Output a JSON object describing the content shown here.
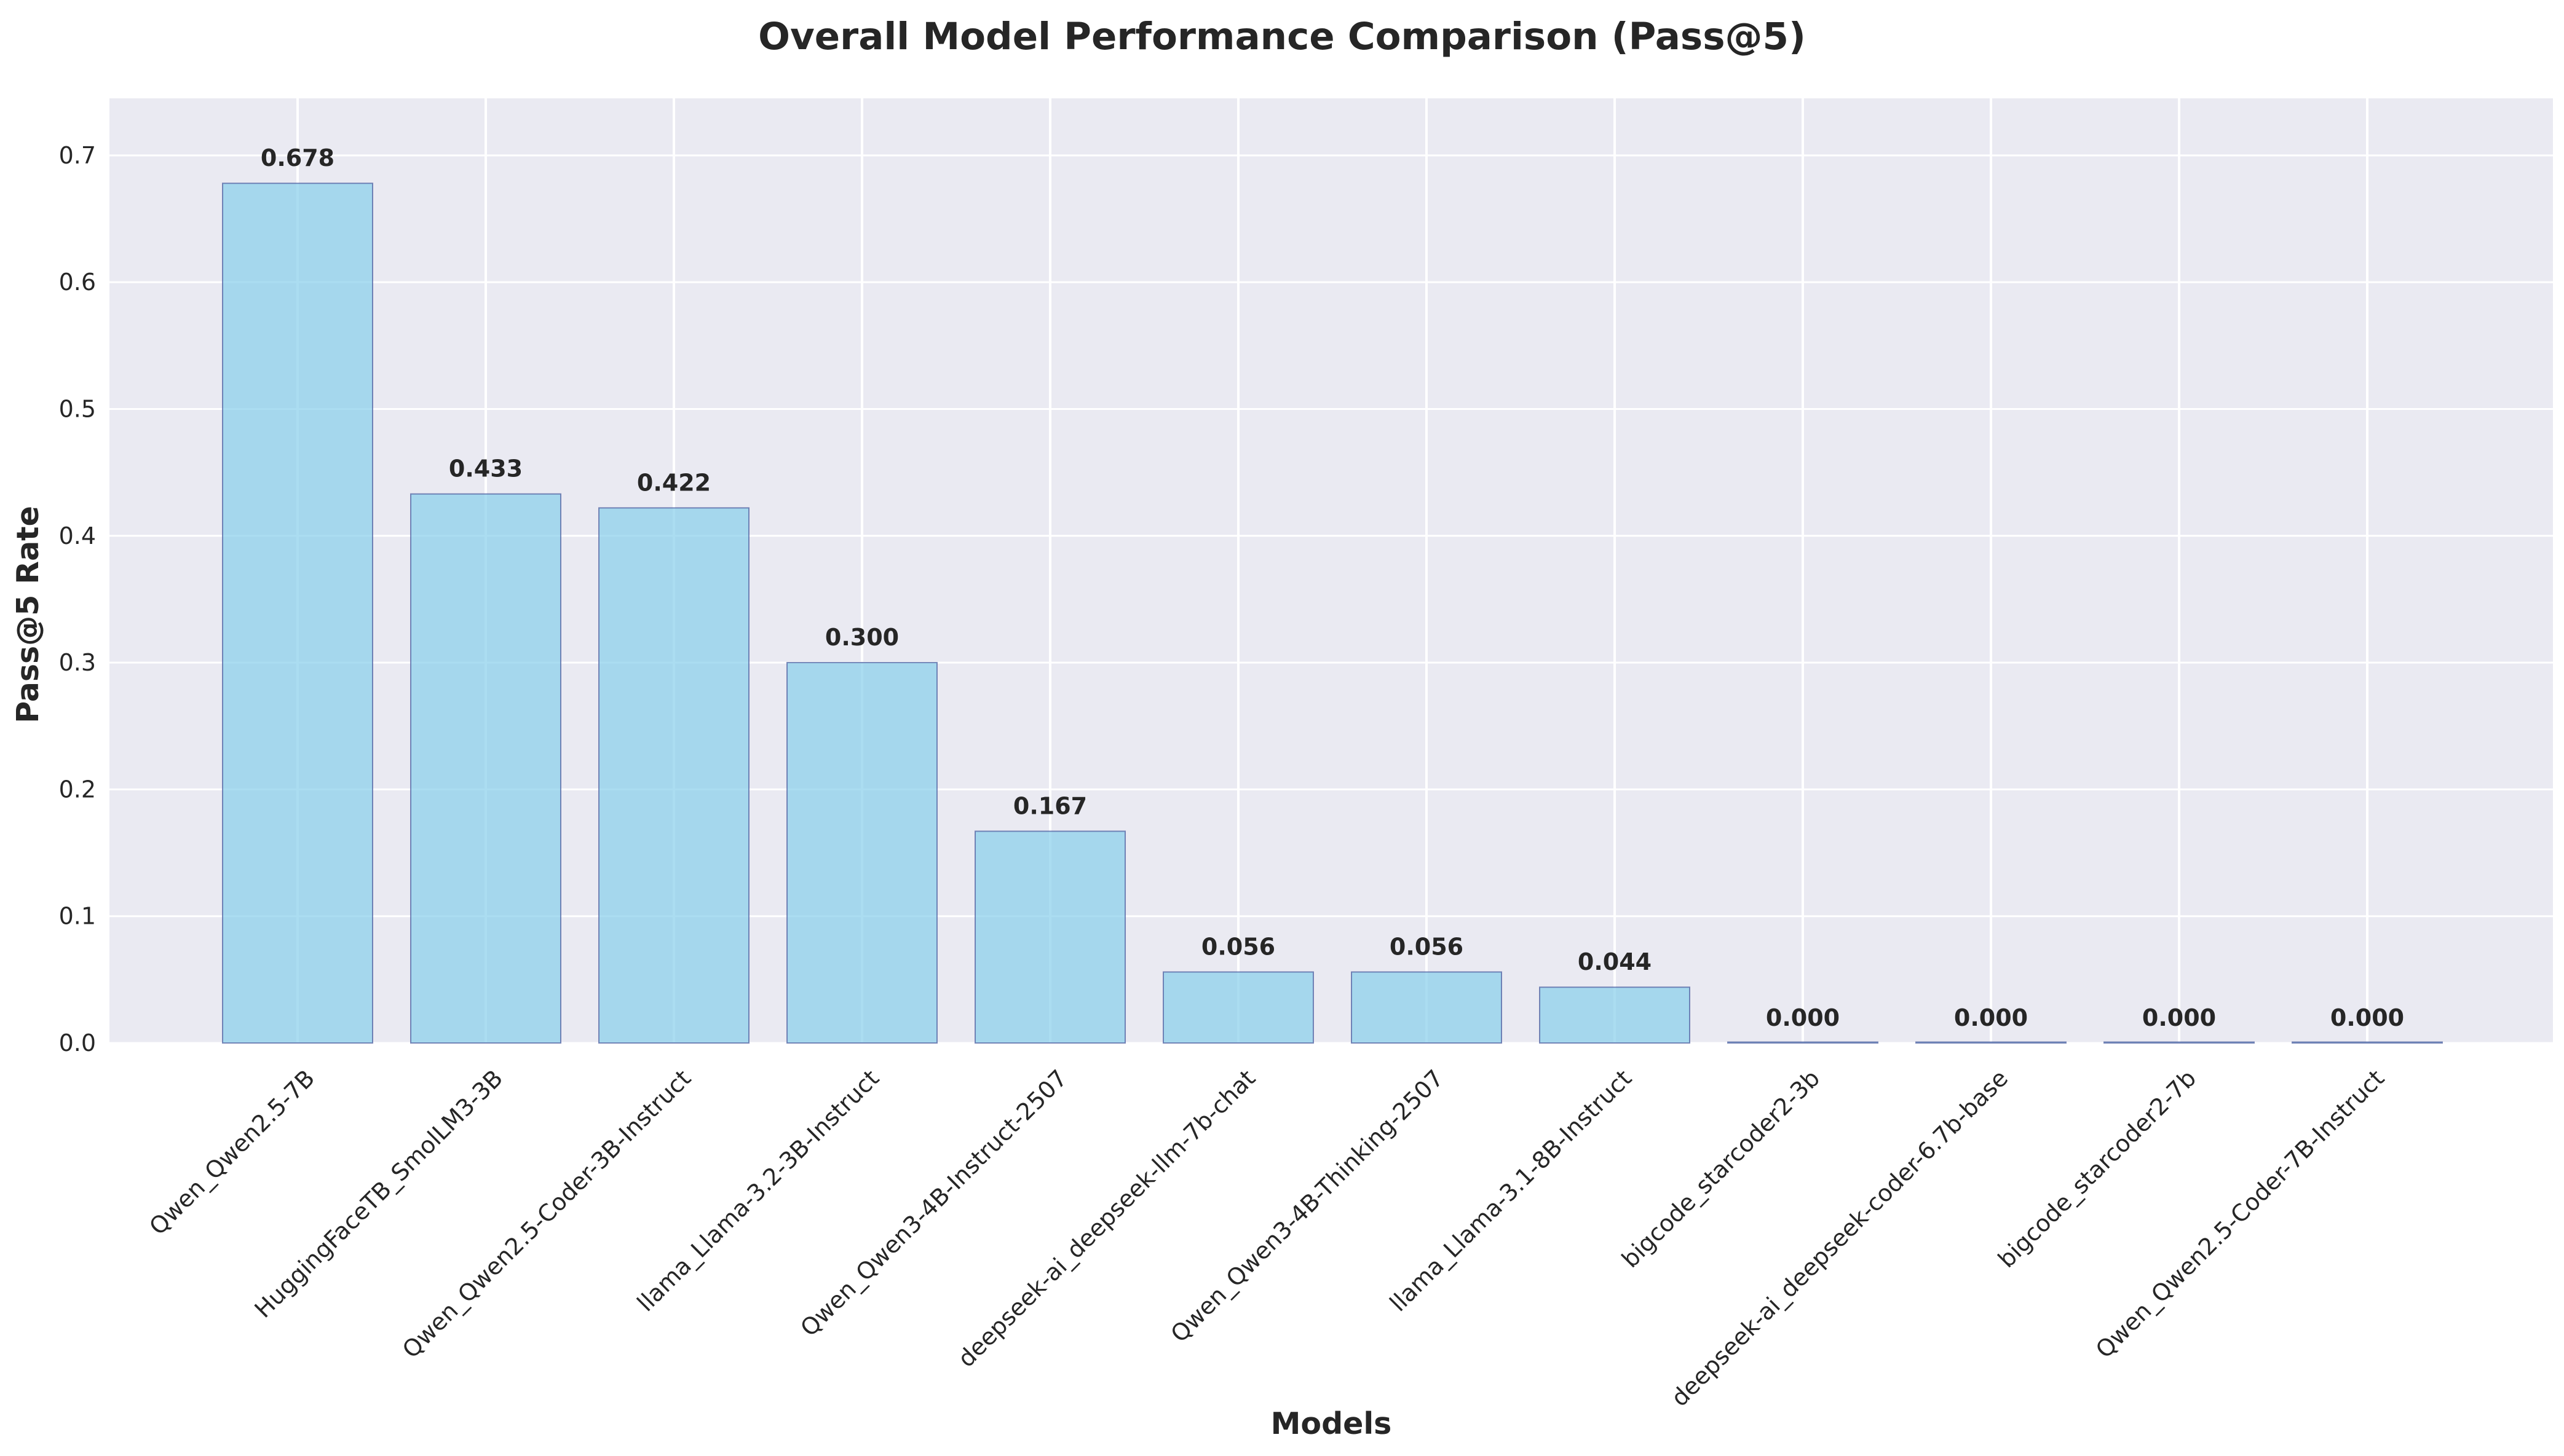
{
  "chart_data": {
    "type": "bar",
    "title": "Overall Model Performance Comparison (Pass@5)",
    "xlabel": "Models",
    "ylabel": "Pass@5 Rate",
    "categories": [
      "Qwen_Qwen2.5-7B",
      "HuggingFaceTB_SmolLM3-3B",
      "Qwen_Qwen2.5-Coder-3B-Instruct",
      "llama_Llama-3.2-3B-Instruct",
      "Qwen_Qwen3-4B-Instruct-2507",
      "deepseek-ai_deepseek-llm-7b-chat",
      "Qwen_Qwen3-4B-Thinking-2507",
      "llama_Llama-3.1-8B-Instruct",
      "bigcode_starcoder2-3b",
      "deepseek-ai_deepseek-coder-6.7b-base",
      "bigcode_starcoder2-7b",
      "Qwen_Qwen2.5-Coder-7B-Instruct"
    ],
    "values": [
      0.678,
      0.433,
      0.422,
      0.3,
      0.167,
      0.056,
      0.056,
      0.044,
      0.0,
      0.0,
      0.0,
      0.0
    ],
    "value_labels": [
      "0.678",
      "0.433",
      "0.422",
      "0.300",
      "0.167",
      "0.056",
      "0.056",
      "0.044",
      "0.000",
      "0.000",
      "0.000",
      "0.000"
    ],
    "ylim": [
      0,
      0.745
    ],
    "yticks": [
      0.0,
      0.1,
      0.2,
      0.3,
      0.4,
      0.5,
      0.6,
      0.7
    ],
    "ytick_labels": [
      "0.0",
      "0.1",
      "0.2",
      "0.3",
      "0.4",
      "0.5",
      "0.6",
      "0.7"
    ],
    "grid": true,
    "colors": {
      "bar_fill": "#87ceeb",
      "bar_edge": "#4a5a9c",
      "plot_background": "#eaeaf2",
      "grid": "#ffffff",
      "text": "#262626"
    }
  }
}
